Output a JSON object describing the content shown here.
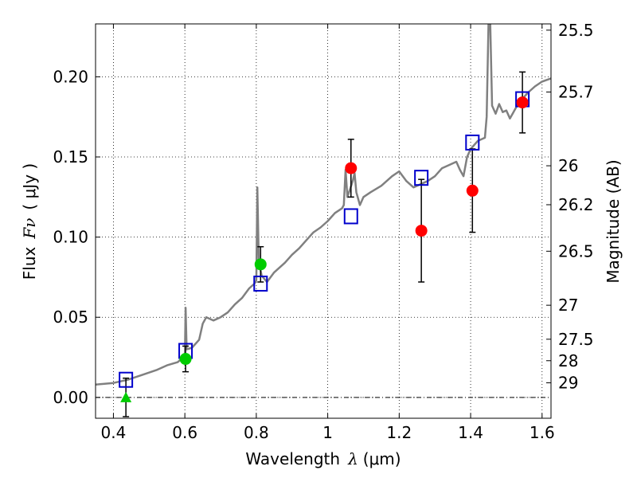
{
  "chart_data": {
    "type": "scatter",
    "title": "",
    "xlabel": {
      "prefix": "Wavelength",
      "symbol": "λ",
      "unit": "(μm)"
    },
    "ylabel": {
      "prefix": "Flux",
      "symbol": "Fν",
      "unit": "( μJy )"
    },
    "y2label": "Magnitude (AB)",
    "xlim": [
      0.35,
      1.625
    ],
    "ylim": [
      -0.013,
      0.233
    ],
    "grid": true,
    "xticks": [
      {
        "value": 0.4,
        "label": "0.4"
      },
      {
        "value": 0.6,
        "label": "0.6"
      },
      {
        "value": 0.8,
        "label": "0.8"
      },
      {
        "value": 1.0,
        "label": "1"
      },
      {
        "value": 1.2,
        "label": "1.2"
      },
      {
        "value": 1.4,
        "label": "1.4"
      },
      {
        "value": 1.6,
        "label": "1.6"
      }
    ],
    "yticks": [
      {
        "value": 0.0,
        "label": "0.00"
      },
      {
        "value": 0.05,
        "label": "0.05"
      },
      {
        "value": 0.1,
        "label": "0.10"
      },
      {
        "value": 0.15,
        "label": "0.15"
      },
      {
        "value": 0.2,
        "label": "0.20"
      }
    ],
    "y2ticks": [
      {
        "label": "25.5",
        "flux": 0.2291
      },
      {
        "label": "25.7",
        "flux": 0.1905
      },
      {
        "label": "26",
        "flux": 0.1445
      },
      {
        "label": "26.2",
        "flux": 0.1202
      },
      {
        "label": "26.5",
        "flux": 0.0912
      },
      {
        "label": "27",
        "flux": 0.0575
      },
      {
        "label": "27.5",
        "flux": 0.0363
      },
      {
        "label": "28",
        "flux": 0.0229
      },
      {
        "label": "29",
        "flux": 0.0091
      }
    ],
    "reference_line": {
      "y": 0.0,
      "style": "dash-dot"
    },
    "series": [
      {
        "kind": "line",
        "color": "#808080",
        "points": [
          [
            0.35,
            0.008
          ],
          [
            0.4,
            0.009
          ],
          [
            0.44,
            0.011
          ],
          [
            0.48,
            0.014
          ],
          [
            0.52,
            0.017
          ],
          [
            0.55,
            0.02
          ],
          [
            0.58,
            0.022
          ],
          [
            0.595,
            0.025
          ],
          [
            0.6,
            0.026
          ],
          [
            0.602,
            0.056
          ],
          [
            0.605,
            0.03
          ],
          [
            0.62,
            0.031
          ],
          [
            0.64,
            0.036
          ],
          [
            0.65,
            0.046
          ],
          [
            0.66,
            0.05
          ],
          [
            0.68,
            0.048
          ],
          [
            0.7,
            0.05
          ],
          [
            0.72,
            0.053
          ],
          [
            0.74,
            0.058
          ],
          [
            0.76,
            0.062
          ],
          [
            0.78,
            0.068
          ],
          [
            0.795,
            0.071
          ],
          [
            0.8,
            0.073
          ],
          [
            0.803,
            0.131
          ],
          [
            0.807,
            0.085
          ],
          [
            0.815,
            0.076
          ],
          [
            0.83,
            0.072
          ],
          [
            0.85,
            0.078
          ],
          [
            0.88,
            0.084
          ],
          [
            0.9,
            0.089
          ],
          [
            0.92,
            0.093
          ],
          [
            0.94,
            0.098
          ],
          [
            0.96,
            0.103
          ],
          [
            0.98,
            0.106
          ],
          [
            1.0,
            0.11
          ],
          [
            1.02,
            0.115
          ],
          [
            1.04,
            0.118
          ],
          [
            1.045,
            0.12
          ],
          [
            1.05,
            0.142
          ],
          [
            1.055,
            0.125
          ],
          [
            1.07,
            0.135
          ],
          [
            1.075,
            0.14
          ],
          [
            1.08,
            0.128
          ],
          [
            1.09,
            0.12
          ],
          [
            1.1,
            0.125
          ],
          [
            1.12,
            0.128
          ],
          [
            1.15,
            0.132
          ],
          [
            1.18,
            0.138
          ],
          [
            1.2,
            0.141
          ],
          [
            1.22,
            0.135
          ],
          [
            1.24,
            0.131
          ],
          [
            1.26,
            0.133
          ],
          [
            1.28,
            0.135
          ],
          [
            1.3,
            0.138
          ],
          [
            1.32,
            0.143
          ],
          [
            1.34,
            0.145
          ],
          [
            1.36,
            0.147
          ],
          [
            1.37,
            0.142
          ],
          [
            1.38,
            0.138
          ],
          [
            1.39,
            0.15
          ],
          [
            1.4,
            0.155
          ],
          [
            1.42,
            0.16
          ],
          [
            1.44,
            0.162
          ],
          [
            1.445,
            0.175
          ],
          [
            1.45,
            0.233
          ],
          [
            1.455,
            0.233
          ],
          [
            1.46,
            0.182
          ],
          [
            1.47,
            0.177
          ],
          [
            1.48,
            0.183
          ],
          [
            1.49,
            0.178
          ],
          [
            1.5,
            0.179
          ],
          [
            1.51,
            0.174
          ],
          [
            1.52,
            0.178
          ],
          [
            1.53,
            0.182
          ],
          [
            1.54,
            0.185
          ],
          [
            1.56,
            0.19
          ],
          [
            1.58,
            0.194
          ],
          [
            1.6,
            0.197
          ],
          [
            1.625,
            0.199
          ]
        ]
      },
      {
        "kind": "open-square",
        "color": "#0000cc",
        "points": [
          [
            0.435,
            0.011
          ],
          [
            0.602,
            0.029
          ],
          [
            0.812,
            0.071
          ],
          [
            1.065,
            0.113
          ],
          [
            1.262,
            0.137
          ],
          [
            1.405,
            0.159
          ],
          [
            1.545,
            0.186
          ]
        ]
      },
      {
        "kind": "filled-circle",
        "color": "#00cc00",
        "points": [
          [
            0.602,
            0.024
          ],
          [
            0.812,
            0.083
          ]
        ],
        "yerr": [
          0.008,
          0.011
        ]
      },
      {
        "kind": "filled-triangle",
        "color": "#00cc00",
        "points": [
          [
            0.435,
            0.0
          ]
        ],
        "yerr": [
          0.012
        ]
      },
      {
        "kind": "filled-circle",
        "color": "#ff0000",
        "points": [
          [
            1.065,
            0.143
          ],
          [
            1.262,
            0.104
          ],
          [
            1.405,
            0.129
          ],
          [
            1.545,
            0.184
          ]
        ],
        "yerr": [
          0.018,
          0.032,
          0.026,
          0.019
        ]
      }
    ]
  }
}
